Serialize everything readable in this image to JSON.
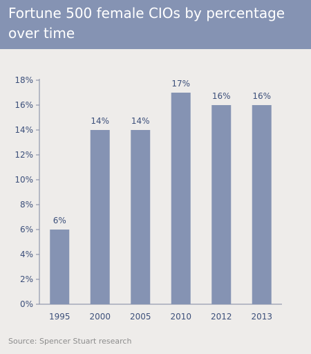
{
  "title": "Fortune 500 female CIOs by percentage over time",
  "source": "Source: Spencer Stuart research",
  "colors": {
    "bar": "#8593b3",
    "header": "#8593b3",
    "text": "#3c4f7a",
    "background": "#eeecea"
  },
  "chart_data": {
    "type": "bar",
    "title": "Fortune 500 female CIOs by percentage over time",
    "categories": [
      "1995",
      "2000",
      "2005",
      "2010",
      "2012",
      "2013"
    ],
    "values": [
      6,
      14,
      14,
      17,
      16,
      16
    ],
    "data_labels": [
      "6%",
      "14%",
      "14%",
      "17%",
      "16%",
      "16%"
    ],
    "yticks": [
      "0%",
      "2%",
      "4%",
      "6%",
      "8%",
      "10%",
      "12%",
      "14%",
      "16%",
      "18%"
    ],
    "ylim": [
      0,
      18
    ],
    "xlabel": "",
    "ylabel": "",
    "grid": false,
    "legend": "none"
  }
}
